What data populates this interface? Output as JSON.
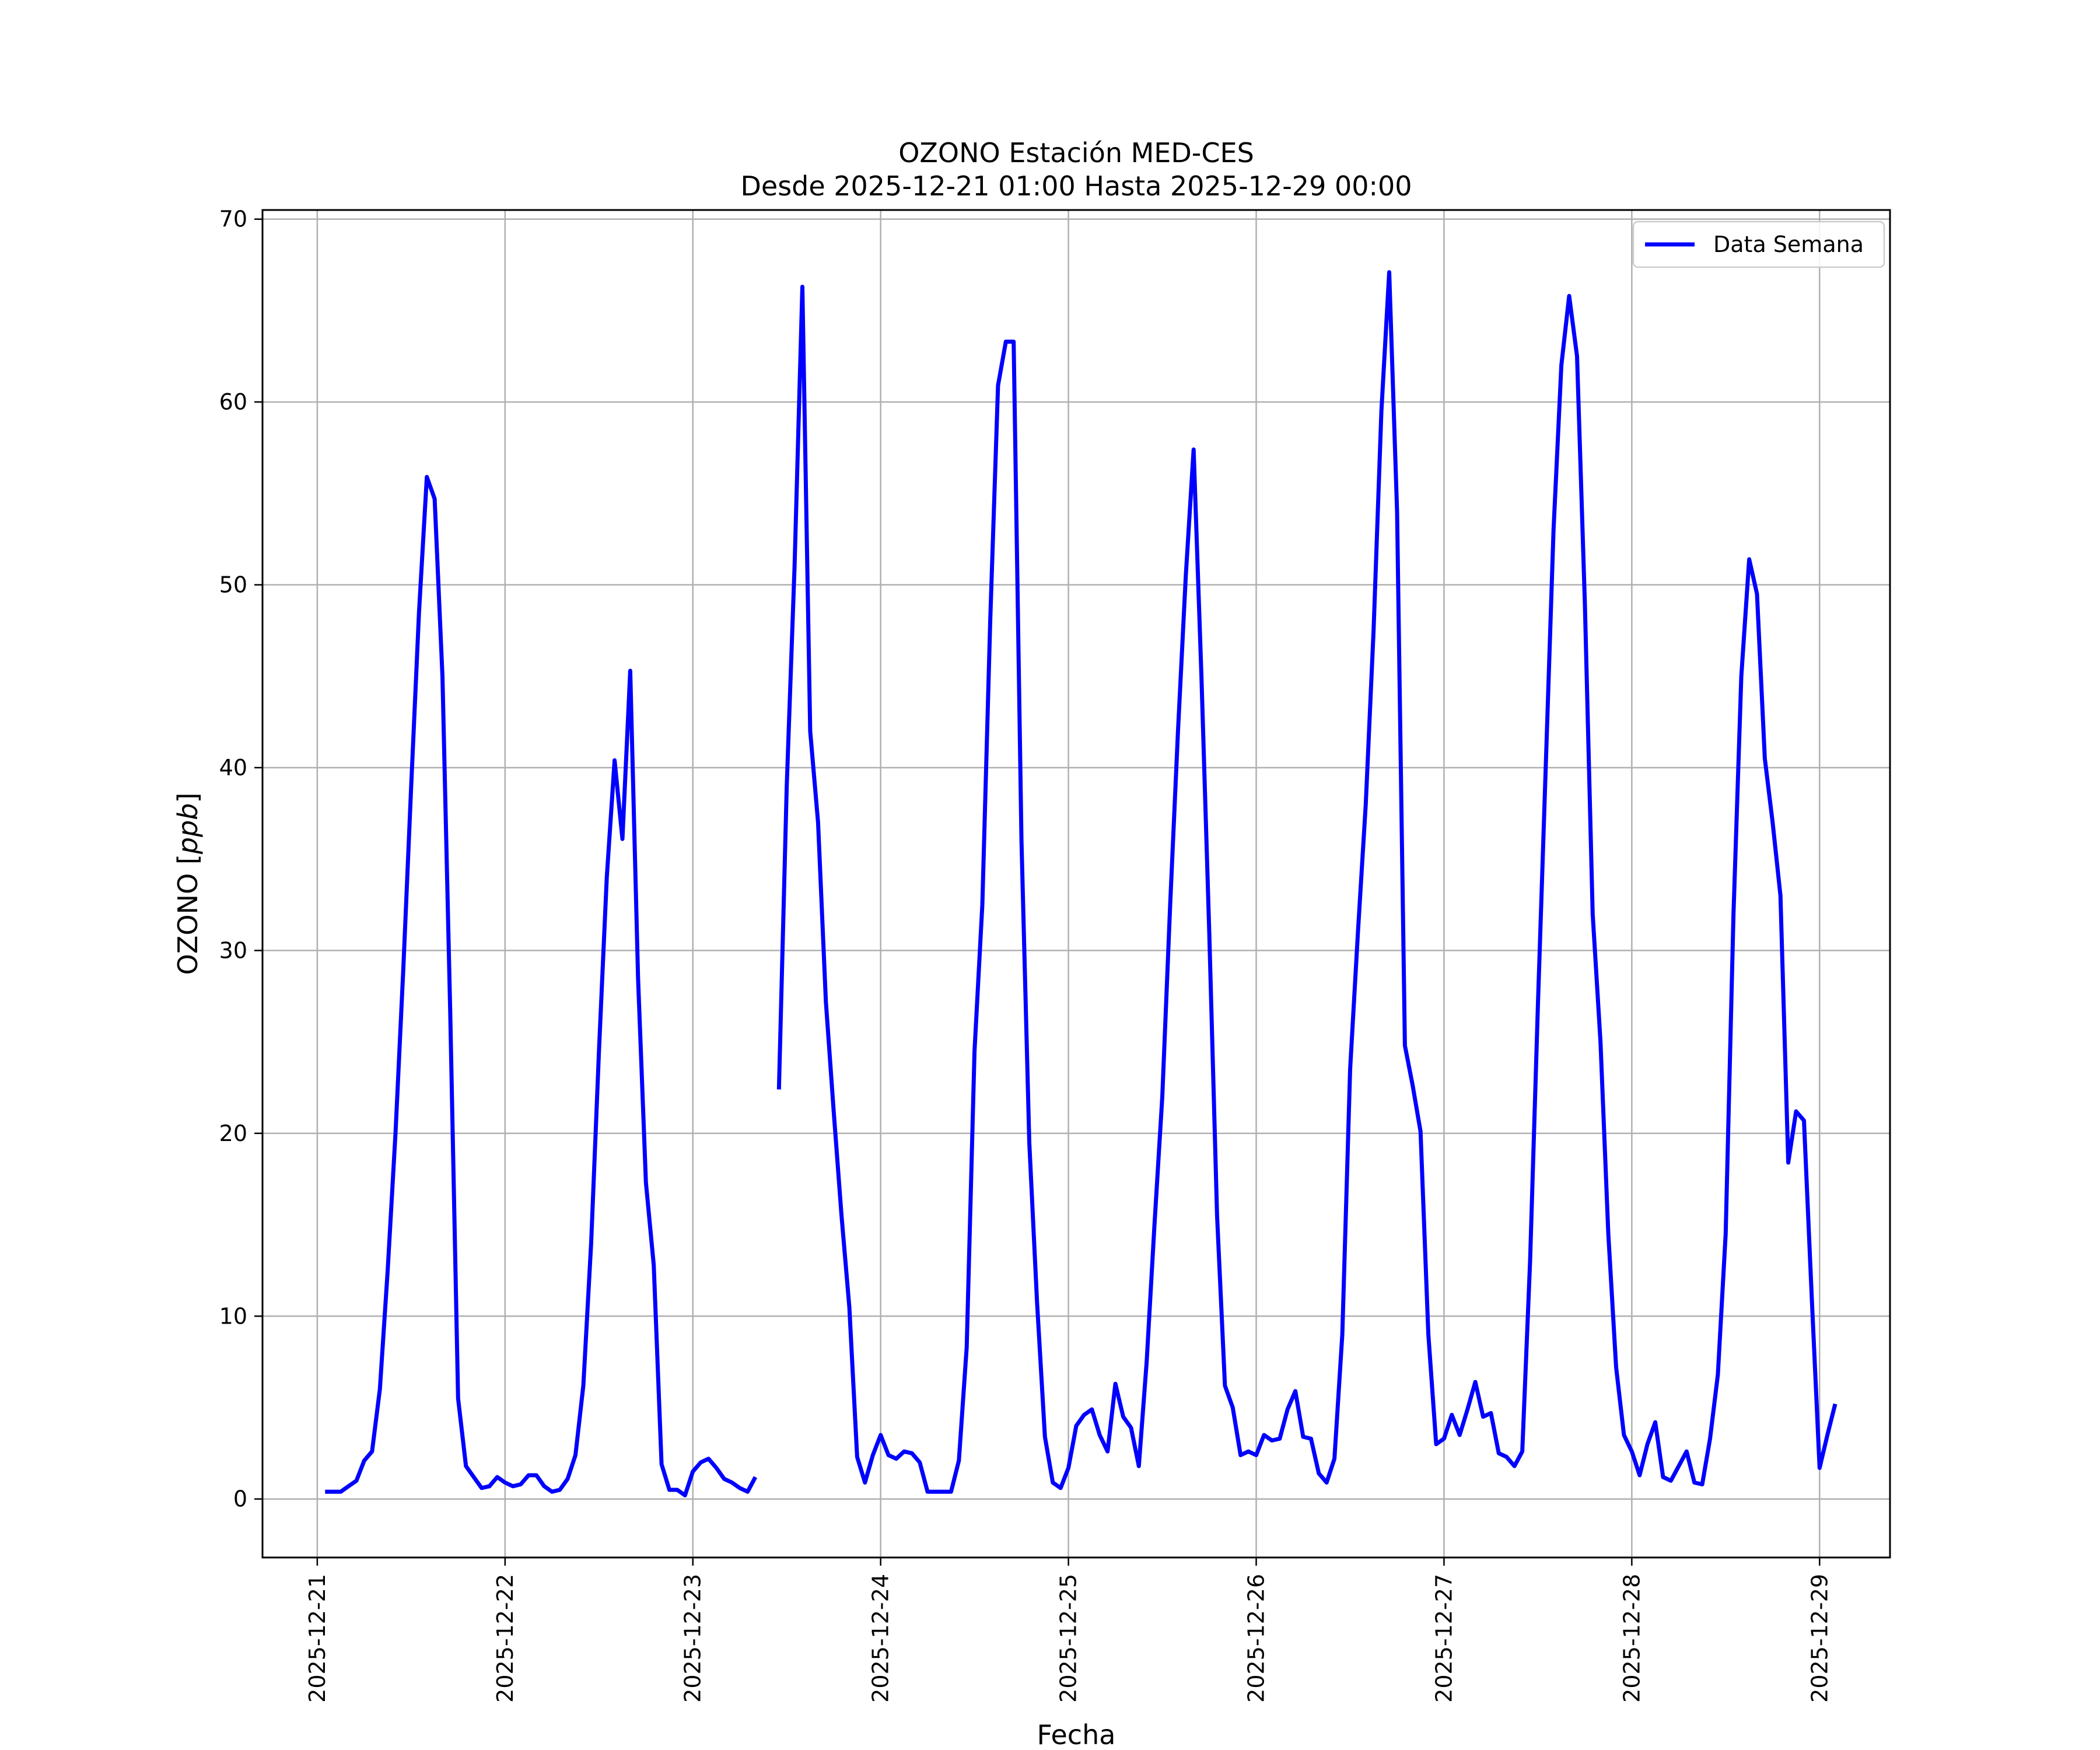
{
  "chart_data": {
    "type": "line",
    "title": "OZONO Estación MED-CES",
    "subtitle": "Desde 2025-12-21 01:00 Hasta 2025-12-29 00:00",
    "xlabel": "Fecha",
    "ylabel": "OZONO [ppb]",
    "ylabel_prefix": "OZONO [",
    "ylabel_unit": "ppb",
    "ylabel_suffix": "]",
    "x_start": "2025-12-21 01:00",
    "x_interval": "1 hour",
    "x_ticks": [
      "2025-12-21",
      "2025-12-22",
      "2025-12-23",
      "2025-12-24",
      "2025-12-25",
      "2025-12-26",
      "2025-12-27",
      "2025-12-28",
      "2025-12-29"
    ],
    "xlim": [
      "2025-12-20 17:00",
      "2025-12-29 09:00"
    ],
    "y_ticks": [
      0,
      10,
      20,
      30,
      40,
      50,
      60,
      70
    ],
    "ylim": [
      -3.2,
      70.5
    ],
    "grid": true,
    "legend_position": "top-right",
    "colors": {
      "series": "#0000ff",
      "grid": "#b0b0b0"
    },
    "series": [
      {
        "name": "Data Semana",
        "values": [
          0.4,
          0.4,
          0.4,
          0.7,
          1.0,
          2.1,
          2.6,
          6.0,
          12.5,
          20.0,
          29.0,
          39.0,
          48.5,
          55.9,
          54.7,
          45.0,
          26.5,
          5.5,
          1.8,
          1.2,
          0.6,
          0.7,
          1.2,
          0.9,
          0.7,
          0.8,
          1.3,
          1.3,
          0.7,
          0.4,
          0.5,
          1.1,
          2.4,
          6.2,
          14.0,
          24.5,
          34.0,
          40.4,
          36.1,
          45.3,
          28.5,
          17.3,
          12.8,
          1.9,
          0.5,
          0.5,
          0.2,
          1.5,
          2.0,
          2.2,
          1.7,
          1.1,
          0.9,
          0.6,
          0.4,
          1.2,
          null,
          null,
          22.4,
          39.0,
          51.0,
          66.3,
          42.0,
          37.0,
          27.2,
          21.2,
          15.5,
          10.5,
          2.3,
          0.9,
          2.4,
          3.5,
          2.4,
          2.2,
          2.6,
          2.5,
          2.0,
          0.4,
          0.4,
          0.4,
          0.4,
          2.1,
          8.3,
          24.5,
          32.5,
          48.0,
          60.9,
          63.3,
          63.3,
          36.0,
          19.5,
          10.7,
          3.4,
          0.9,
          0.6,
          1.7,
          4.0,
          4.6,
          4.9,
          3.5,
          2.6,
          6.3,
          4.5,
          3.9,
          1.8,
          7.5,
          15.0,
          22.0,
          32.5,
          42.0,
          50.5,
          57.4,
          45.0,
          31.0,
          15.5,
          6.2,
          5.0,
          2.4,
          2.6,
          2.4,
          3.5,
          3.2,
          3.3,
          4.9,
          5.9,
          3.4,
          3.3,
          1.4,
          0.9,
          2.2,
          9.0,
          23.5,
          31.0,
          38.0,
          47.5,
          59.5,
          67.1,
          54.0,
          24.8,
          22.6,
          20.1,
          9.0,
          3.0,
          3.3,
          4.6,
          3.5,
          4.9,
          6.4,
          4.5,
          4.7,
          2.5,
          2.3,
          1.8,
          2.6,
          13.0,
          27.0,
          40.0,
          53.0,
          62.0,
          65.8,
          62.5,
          49.0,
          32.0,
          25.0,
          14.5,
          7.2,
          3.5,
          2.6,
          1.3,
          3.0,
          4.2,
          1.2,
          1.0,
          1.8,
          2.6,
          0.9,
          0.8,
          3.3,
          6.8,
          14.5,
          32.0,
          45.0,
          51.4,
          49.5,
          40.5,
          37.0,
          33.0,
          18.4,
          21.2,
          20.7,
          11.0,
          1.7,
          3.5,
          5.2
        ]
      }
    ]
  }
}
